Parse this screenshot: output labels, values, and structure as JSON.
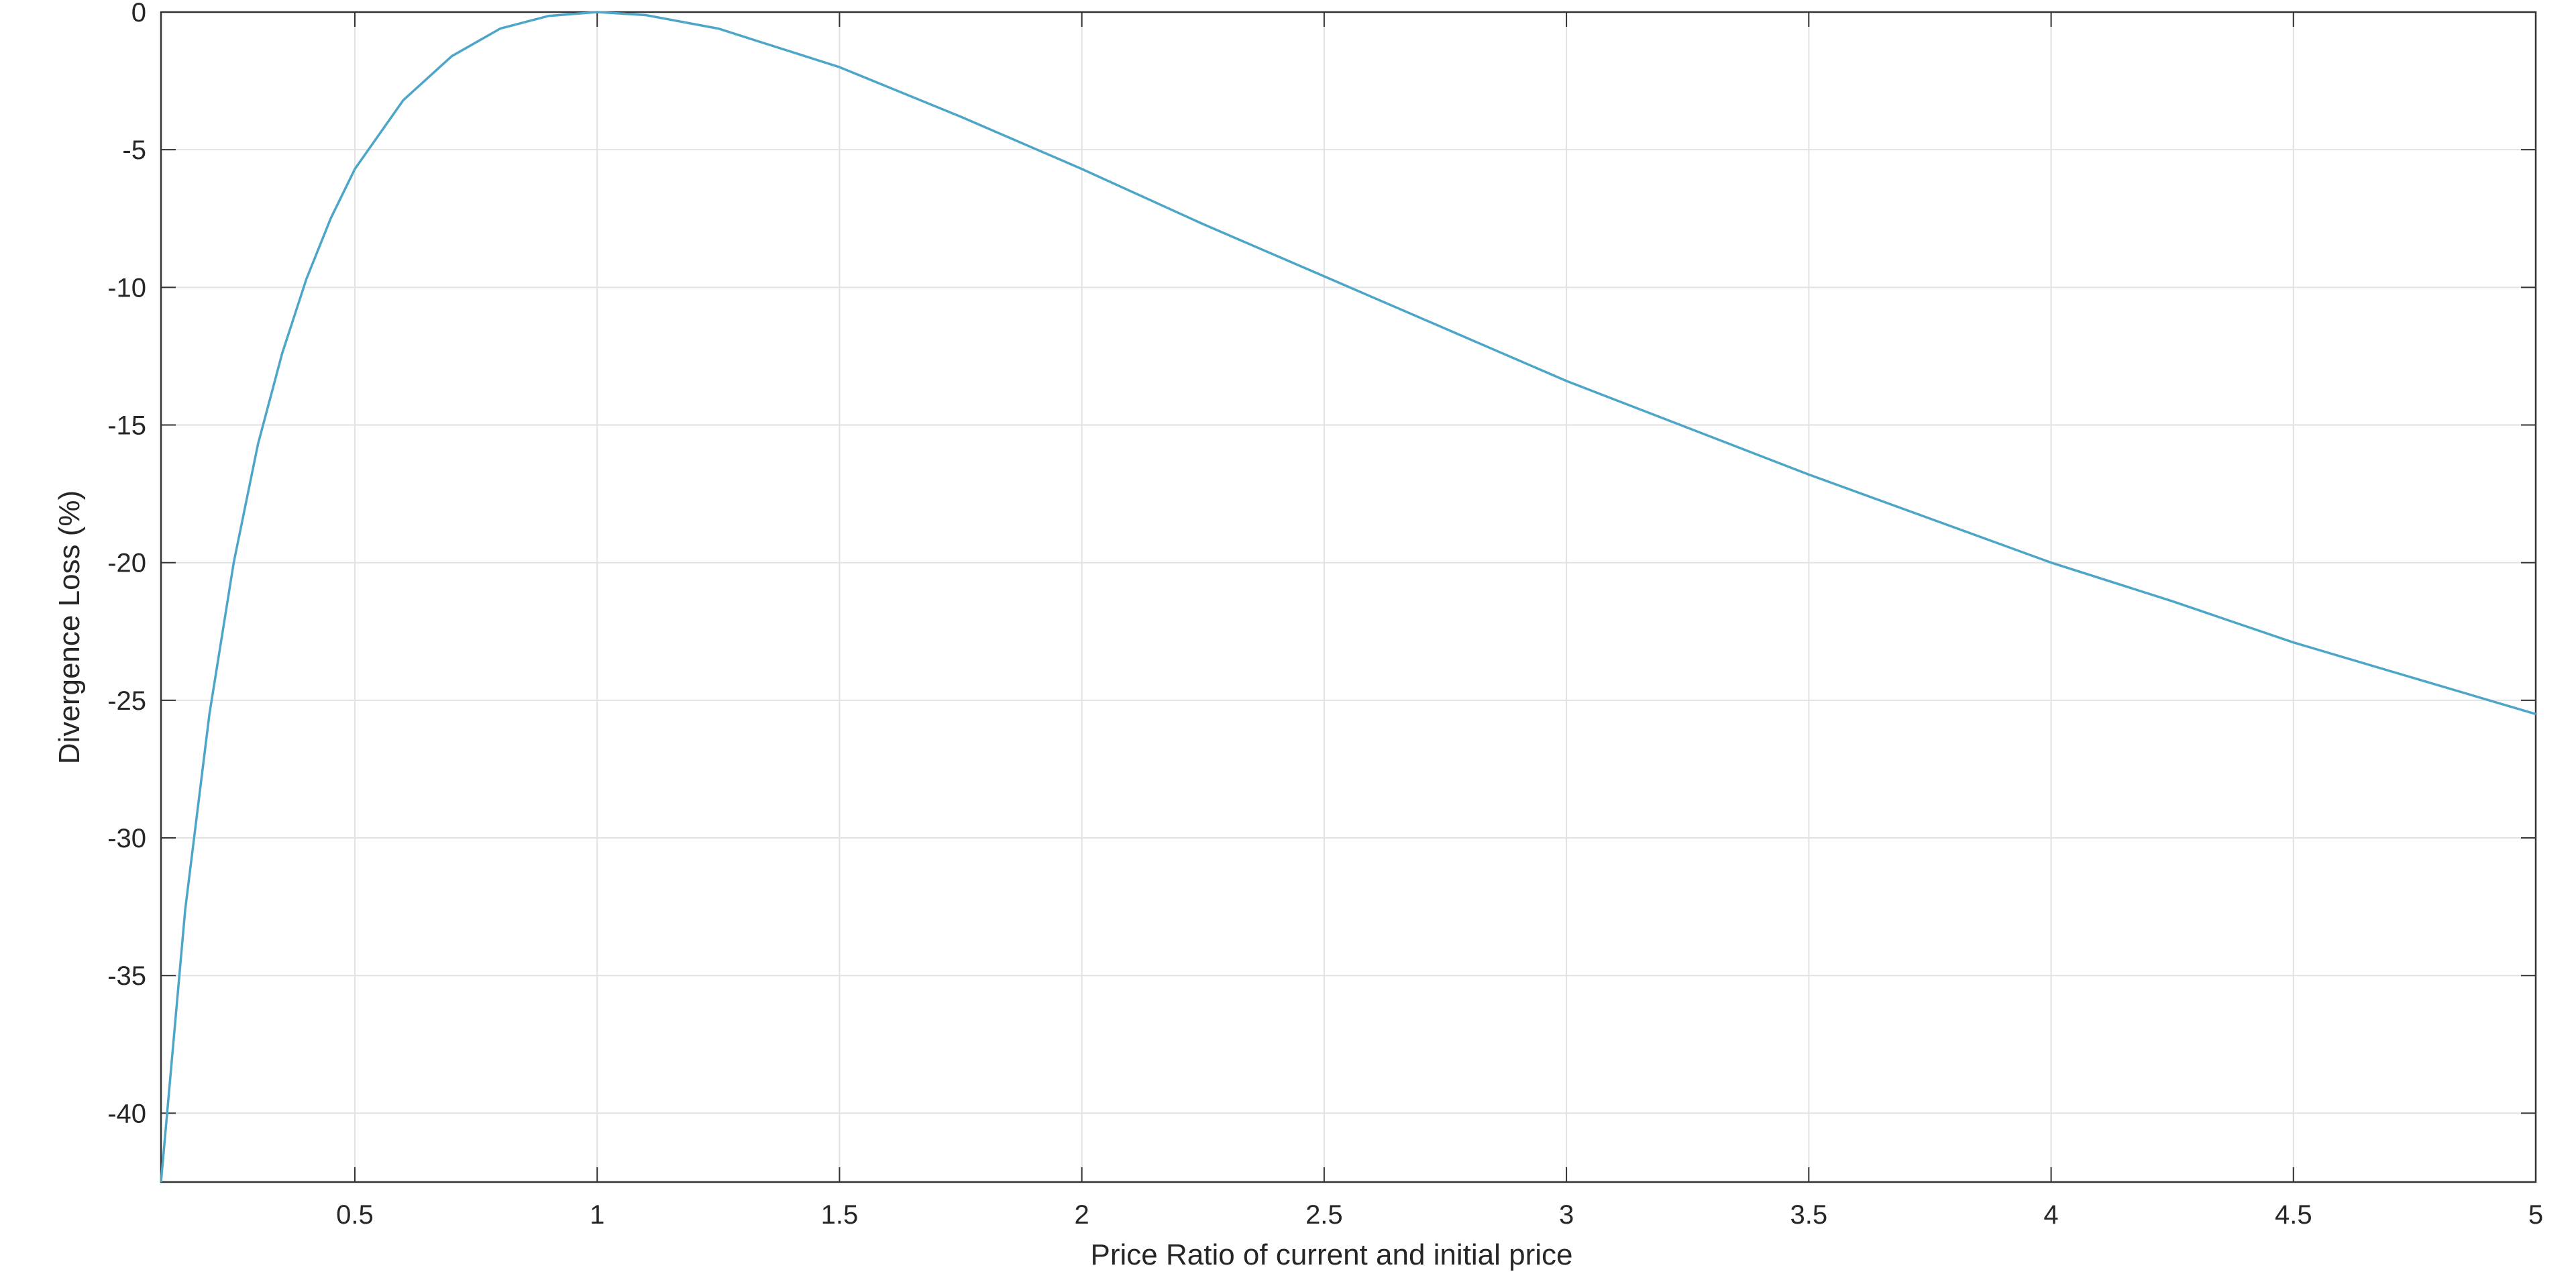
{
  "chart_data": {
    "type": "line",
    "title": "",
    "xlabel": "Price Ratio of current and initial price",
    "ylabel": "Divergence Loss (%)",
    "xlim": [
      0.1,
      5
    ],
    "ylim": [
      -42.5,
      0
    ],
    "x_ticks": [
      0.5,
      1,
      1.5,
      2,
      2.5,
      3,
      3.5,
      4,
      4.5,
      5
    ],
    "x_tick_labels": [
      "0.5",
      "1",
      "1.5",
      "2",
      "2.5",
      "3",
      "3.5",
      "4",
      "4.5",
      "5"
    ],
    "y_ticks": [
      0,
      -5,
      -10,
      -15,
      -20,
      -25,
      -30,
      -35,
      -40
    ],
    "y_tick_labels": [
      "0",
      "-5",
      "-10",
      "-15",
      "-20",
      "-25",
      "-30",
      "-35",
      "-40"
    ],
    "grid": true,
    "legend": "none",
    "series": [
      {
        "color": "#4da6c8",
        "x": [
          0.1,
          0.15,
          0.2,
          0.25,
          0.3,
          0.35,
          0.4,
          0.45,
          0.5,
          0.6,
          0.7,
          0.8,
          0.9,
          1.0,
          1.1,
          1.25,
          1.5,
          1.75,
          2.0,
          2.25,
          2.5,
          2.75,
          3.0,
          3.25,
          3.5,
          3.75,
          4.0,
          4.25,
          4.5,
          4.75,
          5.0
        ],
        "y": [
          -42.5,
          -32.6,
          -25.5,
          -20.0,
          -15.7,
          -12.4,
          -9.7,
          -7.5,
          -5.7,
          -3.2,
          -1.6,
          -0.6,
          -0.14,
          0,
          -0.11,
          -0.6,
          -2.0,
          -3.8,
          -5.7,
          -7.7,
          -9.6,
          -11.5,
          -13.4,
          -15.1,
          -16.8,
          -18.4,
          -20.0,
          -21.4,
          -22.9,
          -24.2,
          -25.5
        ]
      }
    ]
  }
}
